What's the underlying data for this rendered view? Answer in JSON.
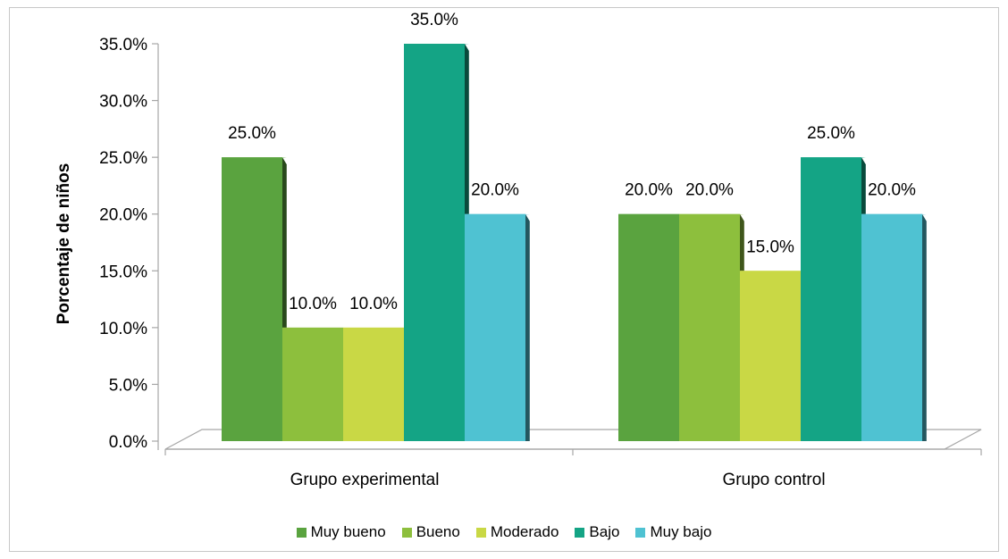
{
  "chart_data": {
    "type": "bar",
    "title": "",
    "xlabel": "",
    "ylabel": "Porcentaje de niños",
    "ylim": [
      0,
      35
    ],
    "yticks": [
      "0.0%",
      "5.0%",
      "10.0%",
      "15.0%",
      "20.0%",
      "25.0%",
      "30.0%",
      "35.0%"
    ],
    "categories": [
      "Grupo experimental",
      "Grupo control"
    ],
    "series": [
      {
        "name": "Muy bueno",
        "values": [
          25.0,
          20.0
        ],
        "labels": [
          "25.0%",
          "20.0%"
        ],
        "color": "#5aa33f"
      },
      {
        "name": "Bueno",
        "values": [
          10.0,
          20.0
        ],
        "labels": [
          "10.0%",
          "20.0%"
        ],
        "color": "#8dbf3d"
      },
      {
        "name": "Moderado",
        "values": [
          10.0,
          15.0
        ],
        "labels": [
          "10.0%",
          "15.0%"
        ],
        "color": "#c9d845"
      },
      {
        "name": "Bajo",
        "values": [
          35.0,
          25.0
        ],
        "labels": [
          "35.0%",
          "25.0%"
        ],
        "color": "#14a485"
      },
      {
        "name": "Muy bajo",
        "values": [
          20.0,
          20.0
        ],
        "labels": [
          "20.0%",
          "20.0%"
        ],
        "color": "#4fc2d2"
      }
    ],
    "grid": false,
    "legend_position": "bottom",
    "style": "3d-clustered-column"
  }
}
